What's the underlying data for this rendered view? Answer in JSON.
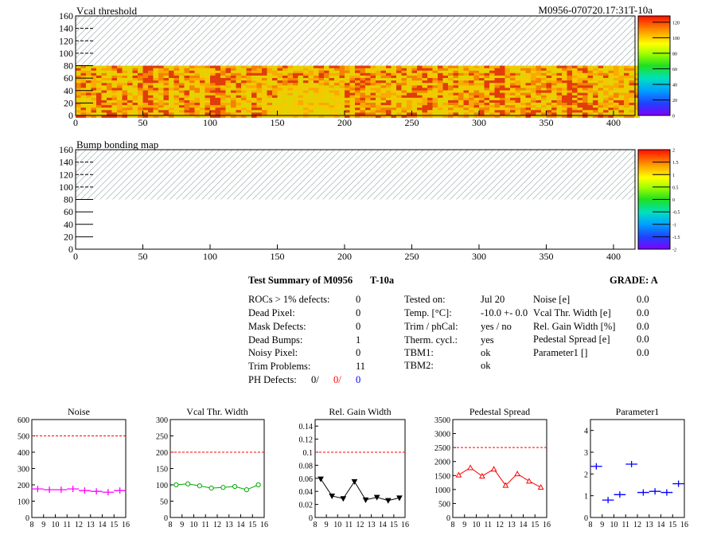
{
  "colors": {
    "red": "#ff0000",
    "blue": "#0000ff",
    "magenta": "#ff00ff",
    "green": "#00aa00",
    "black": "#000000",
    "hatch": "#a0b4b4"
  },
  "module_id": "M0956-070720.17:31T-10a",
  "chart_data": [
    {
      "type": "heatmap",
      "title": "Vcal threshold",
      "xlim": [
        0,
        416
      ],
      "ylim": [
        0,
        160
      ],
      "x_ticks": [
        0,
        50,
        100,
        150,
        200,
        250,
        300,
        350,
        400
      ],
      "y_ticks": [
        0,
        20,
        40,
        60,
        80,
        100,
        120,
        140,
        160
      ],
      "z_ticks": [
        0,
        20,
        40,
        60,
        80,
        100,
        120
      ],
      "zlim": [
        0,
        128
      ],
      "filled_rows": [
        0,
        80
      ],
      "grid": false
    },
    {
      "type": "heatmap",
      "title": "Bump bonding map",
      "xlim": [
        0,
        416
      ],
      "ylim": [
        0,
        160
      ],
      "x_ticks": [
        0,
        50,
        100,
        150,
        200,
        250,
        300,
        350,
        400
      ],
      "y_ticks": [
        0,
        20,
        40,
        60,
        80,
        100,
        120,
        140,
        160
      ],
      "z_ticks": [
        -2,
        -1.5,
        -1,
        -0.5,
        0,
        0.5,
        1,
        1.5,
        2
      ],
      "zlim": [
        -2,
        2
      ],
      "filled_rows": [
        0,
        80
      ],
      "grid": false
    },
    {
      "type": "scatter",
      "title": "Noise",
      "x": [
        8.5,
        9.5,
        10.5,
        11.5,
        12.5,
        13.5,
        14.5,
        15.5
      ],
      "values": [
        175,
        170,
        170,
        175,
        165,
        160,
        155,
        165
      ],
      "xlim": [
        8,
        16
      ],
      "ylim": [
        0,
        600
      ],
      "y_ticks": [
        0,
        100,
        200,
        300,
        400,
        500,
        600
      ],
      "threshold": 500,
      "marker": "plus"
    },
    {
      "type": "line",
      "title": "Vcal Thr. Width",
      "x": [
        8.5,
        9.5,
        10.5,
        11.5,
        12.5,
        13.5,
        14.5,
        15.5
      ],
      "values": [
        100,
        103,
        97,
        90,
        92,
        95,
        85,
        100
      ],
      "xlim": [
        8,
        16
      ],
      "ylim": [
        0,
        300
      ],
      "y_ticks": [
        0,
        50,
        100,
        150,
        200,
        250,
        300
      ],
      "threshold": 200,
      "marker": "circle"
    },
    {
      "type": "line",
      "title": "Rel. Gain Width",
      "x": [
        8.5,
        9.5,
        10.5,
        11.5,
        12.5,
        13.5,
        14.5,
        15.5
      ],
      "values": [
        0.059,
        0.033,
        0.029,
        0.055,
        0.027,
        0.031,
        0.026,
        0.03
      ],
      "xlim": [
        8,
        16
      ],
      "ylim": [
        0,
        0.15
      ],
      "y_ticks": [
        0,
        0.02,
        0.04,
        0.06,
        0.08,
        0.1,
        0.12,
        0.14
      ],
      "threshold": 0.1,
      "marker": "triangle-down"
    },
    {
      "type": "line",
      "title": "Pedestal Spread",
      "x": [
        8.5,
        9.5,
        10.5,
        11.5,
        12.5,
        13.5,
        14.5,
        15.5
      ],
      "values": [
        1520,
        1780,
        1480,
        1730,
        1150,
        1560,
        1300,
        1080
      ],
      "xlim": [
        8,
        16
      ],
      "ylim": [
        0,
        3500
      ],
      "y_ticks": [
        0,
        500,
        1000,
        1500,
        2000,
        2500,
        3000,
        3500
      ],
      "threshold": 2500,
      "marker": "triangle-up"
    },
    {
      "type": "scatter",
      "title": "Parameter1",
      "x": [
        8.5,
        9.5,
        10.5,
        11.5,
        12.5,
        13.5,
        14.5,
        15.5
      ],
      "values": [
        2.35,
        0.8,
        1.05,
        2.45,
        1.15,
        1.2,
        1.15,
        1.55
      ],
      "xlim": [
        8,
        16
      ],
      "ylim": [
        0,
        4.5
      ],
      "y_ticks": [
        0,
        1,
        2,
        3,
        4
      ],
      "marker": "plus"
    }
  ],
  "summary": {
    "title": "Test Summary of M0956",
    "temp_code": "T-10a",
    "grade": "GRADE:  A",
    "left": [
      {
        "label": "ROCs > 1% defects:",
        "value": "0"
      },
      {
        "label": "Dead Pixel:",
        "value": "0"
      },
      {
        "label": "Mask Defects:",
        "value": "0"
      },
      {
        "label": "Dead Bumps:",
        "value": "1"
      },
      {
        "label": "Noisy Pixel:",
        "value": "0"
      },
      {
        "label": "Trim Problems:",
        "value": "11"
      }
    ],
    "ph_defects": {
      "label": "PH Defects:",
      "v1": "0/",
      "v2": "0/",
      "v3": "0"
    },
    "middle": [
      {
        "label": "Tested on:",
        "value": "Jul 20"
      },
      {
        "label": "Temp. [°C]:",
        "value": "-10.0 +- 0.0"
      },
      {
        "label": "Trim / phCal:",
        "value": "yes / no"
      },
      {
        "label": "Therm. cycl.:",
        "value": "yes"
      },
      {
        "label": "TBM1:",
        "value": "ok"
      },
      {
        "label": "TBM2:",
        "value": "ok"
      }
    ],
    "right": [
      {
        "label": "Noise [e]",
        "value": "0.0"
      },
      {
        "label": "Vcal Thr. Width [e]",
        "value": "0.0"
      },
      {
        "label": "Rel. Gain Width [%]",
        "value": "0.0"
      },
      {
        "label": "Pedestal Spread [e]",
        "value": "0.0"
      },
      {
        "label": "Parameter1 []",
        "value": "0.0"
      }
    ]
  }
}
